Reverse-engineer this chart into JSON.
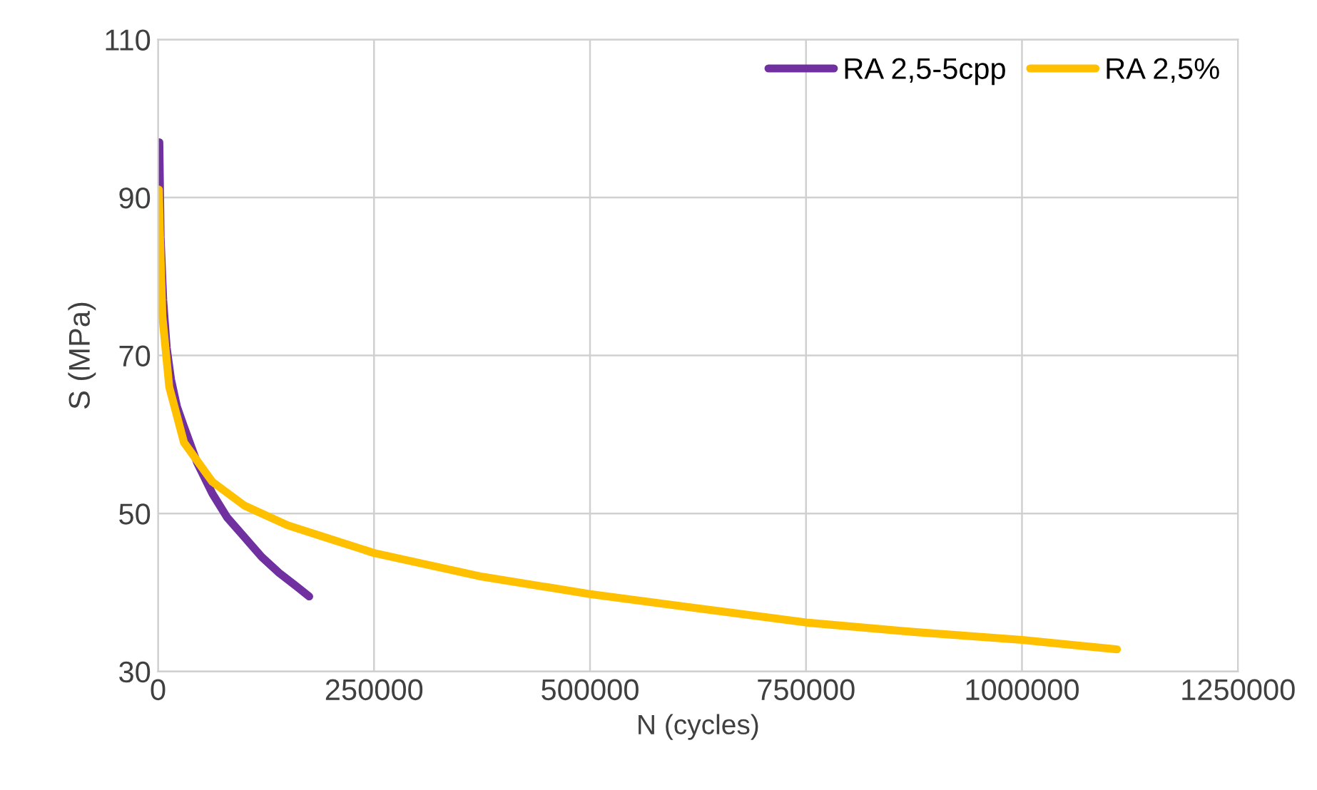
{
  "chart_data": {
    "type": "line",
    "xlabel": "N (cycles)",
    "ylabel": "S (MPa)",
    "xlim": [
      0,
      1250000
    ],
    "xticks": [
      0,
      250000,
      500000,
      750000,
      1000000,
      1250000
    ],
    "ylim": [
      30,
      110
    ],
    "yticks": [
      30,
      50,
      70,
      90,
      110
    ],
    "grid": true,
    "legend": "top right",
    "marker": "none",
    "line_style": "solid",
    "series": [
      {
        "name": "RA 2,5-5cpp",
        "color": "#7030a0",
        "x": [
          1500,
          3000,
          6000,
          10000,
          15000,
          22000,
          30000,
          45000,
          63000,
          80000,
          100000,
          120000,
          140000,
          160000,
          175000
        ],
        "values": [
          97,
          85,
          77,
          71,
          67,
          63.5,
          61,
          56.5,
          52.5,
          49.5,
          47,
          44.5,
          42.5,
          40.8,
          39.5
        ]
      },
      {
        "name": "RA 2,5%",
        "color": "#ffc000",
        "x": [
          1000,
          2000,
          5000,
          13000,
          30000,
          63000,
          100000,
          150000,
          250000,
          375000,
          500000,
          625000,
          750000,
          875000,
          1000000,
          1110000
        ],
        "values": [
          91,
          86,
          75,
          66,
          59,
          54,
          51,
          48.5,
          45,
          42,
          39.8,
          38,
          36.2,
          35,
          34,
          32.8
        ]
      }
    ]
  }
}
